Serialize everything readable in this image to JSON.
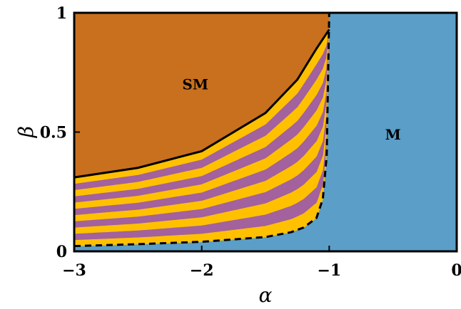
{
  "chart_data": {
    "type": "area",
    "xlabel": "α",
    "ylabel": "β",
    "xlim": [
      -3,
      0
    ],
    "ylim": [
      0,
      1
    ],
    "xticks": [
      {
        "value": -3,
        "label": "−3"
      },
      {
        "value": -2,
        "label": "−2"
      },
      {
        "value": -1,
        "label": "−1"
      },
      {
        "value": 0,
        "label": "0"
      }
    ],
    "yticks": [
      {
        "value": 0,
        "label": "0"
      },
      {
        "value": 0.5,
        "label": "0.5"
      },
      {
        "value": 1,
        "label": "1"
      }
    ],
    "regions": [
      {
        "label": "SM",
        "color": "#c8701e",
        "label_at": [
          -2.05,
          0.7
        ]
      },
      {
        "label": "M",
        "color": "#5b9ec7",
        "label_at": [
          -0.5,
          0.49
        ]
      }
    ],
    "boundaries": {
      "upper_solid": [
        [
          -3,
          0.31
        ],
        [
          -2.5,
          0.35
        ],
        [
          -2,
          0.42
        ],
        [
          -1.5,
          0.58
        ],
        [
          -1.25,
          0.72
        ],
        [
          -1.1,
          0.85
        ],
        [
          -1.0,
          0.93
        ]
      ],
      "lower_dashed": [
        [
          -3,
          0.022
        ],
        [
          -2.5,
          0.03
        ],
        [
          -2,
          0.04
        ],
        [
          -1.5,
          0.06
        ],
        [
          -1.3,
          0.08
        ],
        [
          -1.2,
          0.1
        ],
        [
          -1.1,
          0.14
        ],
        [
          -1.05,
          0.22
        ],
        [
          -1.02,
          0.4
        ],
        [
          -1.0,
          1.0
        ]
      ]
    },
    "stripe_colors": [
      "#ffc000",
      "#a3619d"
    ],
    "grid": false
  }
}
